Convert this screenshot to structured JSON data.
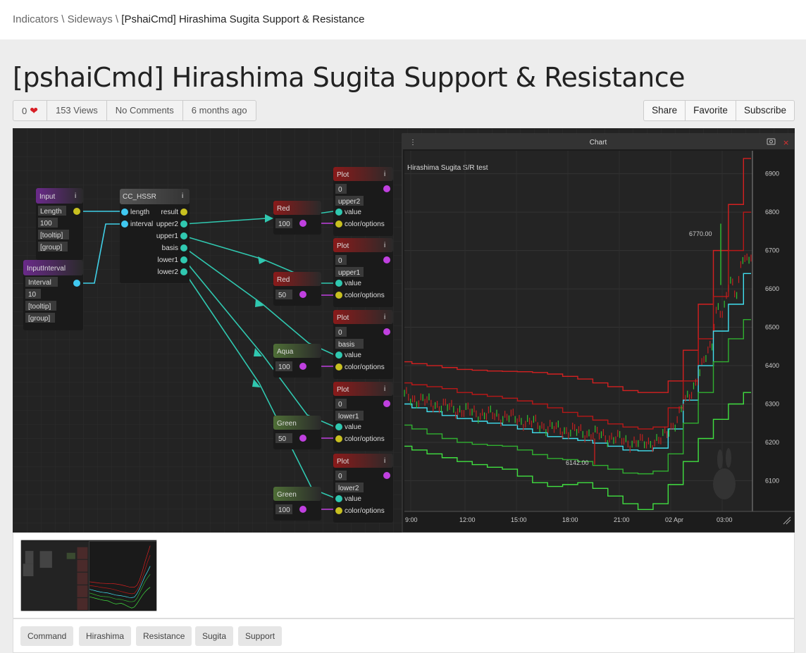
{
  "breadcrumb": {
    "parts": [
      "Indicators",
      "Sideways"
    ],
    "sep": " \\ ",
    "current": "[PshaiCmd] Hirashima Sugita Support & Resistance"
  },
  "page": {
    "title": "[pshaiCmd] Hirashima Sugita Support & Resistance"
  },
  "meta": {
    "likes": "0",
    "views": "153 Views",
    "comments": "No Comments",
    "age": "6 months ago"
  },
  "actions": {
    "share": "Share",
    "favorite": "Favorite",
    "subscribe": "Subscribe"
  },
  "graph": {
    "input_node": {
      "title": "Input",
      "fields": [
        "Length",
        "100",
        "[tooltip]",
        "[group]"
      ]
    },
    "interval_node": {
      "title": "InputInterval",
      "fields": [
        "Interval",
        "10",
        "[tooltip]",
        "[group]"
      ]
    },
    "hssr_node": {
      "title": "CC_HSSR",
      "inputs": [
        "length",
        "interval"
      ],
      "outputs": [
        "result",
        "upper2",
        "upper1",
        "basis",
        "lower1",
        "lower2"
      ]
    },
    "color_nodes": [
      {
        "title": "Red",
        "value": "100"
      },
      {
        "title": "Red",
        "value": "50"
      },
      {
        "title": "Aqua",
        "value": "100"
      },
      {
        "title": "Green",
        "value": "50"
      },
      {
        "title": "Green",
        "value": "100"
      }
    ],
    "plot_nodes": [
      {
        "title": "Plot",
        "index": "0",
        "name": "upper2"
      },
      {
        "title": "Plot",
        "index": "0",
        "name": "upper1"
      },
      {
        "title": "Plot",
        "index": "0",
        "name": "basis"
      },
      {
        "title": "Plot",
        "index": "0",
        "name": "lower1"
      },
      {
        "title": "Plot",
        "index": "0",
        "name": "lower2"
      }
    ],
    "plot_ports": [
      "value",
      "color/options"
    ],
    "info_glyph": "i"
  },
  "chart_window": {
    "title": "Chart",
    "subtitle": "Hirashima Sugita S/R test",
    "high_label": "6770.00",
    "low_label": "6142.00"
  },
  "chart_data": {
    "type": "line",
    "x_ticks": [
      "9:00",
      "12:00",
      "15:00",
      "18:00",
      "21:00",
      "02 Apr",
      "03:00"
    ],
    "y_ticks": [
      6100,
      6200,
      6300,
      6400,
      6500,
      6600,
      6700,
      6800,
      6900
    ],
    "ylim": [
      6020,
      6960
    ],
    "grid": true,
    "annotations": [
      {
        "label": "6770.00",
        "value": 6770
      },
      {
        "label": "6142.00",
        "value": 6142
      }
    ],
    "series": [
      {
        "color": "#d42020",
        "values": [
          6410,
          6405,
          6400,
          6395,
          6390,
          6388,
          6386,
          6385,
          6384,
          6382,
          6378,
          6372,
          6365,
          6355,
          6345,
          6335,
          6330,
          6330,
          6360,
          6440,
          6560,
          6700,
          6820,
          6940
        ]
      },
      {
        "color": "#b81818",
        "values": [
          6355,
          6350,
          6345,
          6340,
          6330,
          6325,
          6320,
          6315,
          6308,
          6300,
          6290,
          6278,
          6268,
          6258,
          6248,
          6240,
          6235,
          6240,
          6290,
          6360,
          6470,
          6580,
          6700,
          6800
        ]
      },
      {
        "color": "#40e0f0",
        "values": [
          6300,
          6290,
          6280,
          6270,
          6262,
          6255,
          6250,
          6245,
          6235,
          6225,
          6215,
          6210,
          6205,
          6198,
          6190,
          6180,
          6178,
          6185,
          6235,
          6310,
          6400,
          6490,
          6560,
          6640
        ]
      },
      {
        "color": "#30b030",
        "values": [
          6245,
          6235,
          6222,
          6210,
          6200,
          6195,
          6192,
          6190,
          6180,
          6168,
          6158,
          6155,
          6150,
          6140,
          6130,
          6120,
          6118,
          6125,
          6170,
          6250,
          6330,
          6410,
          6470,
          6520
        ]
      },
      {
        "color": "#40e040",
        "values": [
          6190,
          6180,
          6170,
          6160,
          6150,
          6142,
          6135,
          6130,
          6112,
          6095,
          6085,
          6090,
          6095,
          6080,
          6060,
          6040,
          6025,
          6040,
          6090,
          6150,
          6210,
          6260,
          6300,
          6330
        ]
      }
    ]
  },
  "tags": [
    "Command",
    "Hirashima",
    "Resistance",
    "Sugita",
    "Support"
  ]
}
